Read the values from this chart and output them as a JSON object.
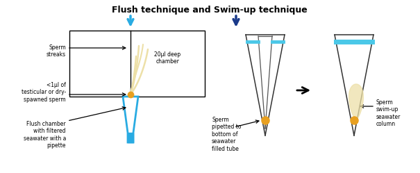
{
  "title": "Flush technique and Swim-up technique",
  "title_fontsize": 9,
  "title_fontweight": "bold",
  "bg_color": "#ffffff",
  "flush_arrow_color": "#29ABE2",
  "swimup_arrow_color": "#1A3A8A",
  "box_color": "#000000",
  "pipette_color": "#29ABE2",
  "tube_color": "#555555",
  "seawater_color": "#4BC8E8",
  "sperm_dot_color": "#E8A020",
  "sperm_streak_color": "#EDE0A8",
  "arrow_color": "#111111",
  "labels": {
    "sperm_streaks": "Sperm\nstreaks",
    "less1ul": "<1μl of\ntesticular or dry-\nspawned sperm",
    "flush_chamber": "Flush chamber\nwith filtered\nseawater with a\npipette",
    "deep_chamber": "20μl deep\nchamber",
    "sperm_pipetted": "Sperm\npipetted to\nbottom of\nseawater\nfilled tube",
    "sperm_swimup": "Sperm\nswim-up\nseawater\ncolumn"
  },
  "label_fontsize": 5.5,
  "figure_width": 6.05,
  "figure_height": 2.49,
  "dpi": 100
}
